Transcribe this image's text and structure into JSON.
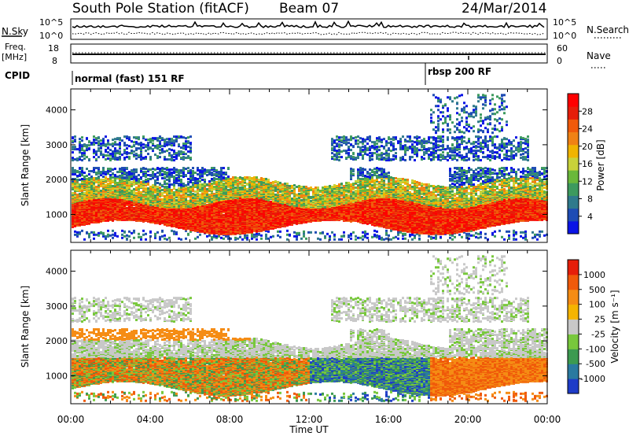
{
  "header": {
    "station": "South Pole Station (fitACF)",
    "beam": "Beam 07",
    "date": "24/Mar/2014"
  },
  "top_panels": {
    "nsky_label": "N.Sky",
    "nsky_ticks": [
      "10^5",
      "10^0"
    ],
    "nsearch_label": "N.Search",
    "nsearch_ticks": [
      "10^5",
      "10^0"
    ],
    "freq_label_1": "Freq.",
    "freq_label_2": "[MHz]",
    "freq_ticks": [
      "18",
      "8"
    ],
    "nave_label": "Nave",
    "nave_ticks": [
      "60",
      "0"
    ],
    "cpid_label": "CPID",
    "cpid_segments": [
      {
        "label": "normal (fast) 151 RF",
        "start_hour": 0
      },
      {
        "label": "rbsp 200 RF",
        "start_hour": 18
      }
    ]
  },
  "chart_data": [
    {
      "type": "heatmap",
      "name": "power",
      "ylabel": "Slant Range [km]",
      "xlabel": "",
      "xlim": [
        0,
        24
      ],
      "ylim": [
        200,
        4600
      ],
      "yticks": [
        "1000",
        "2000",
        "3000",
        "4000"
      ],
      "colorbar": {
        "label": "Power [dB]",
        "ticks": [
          "4",
          "8",
          "12",
          "16",
          "20",
          "24",
          "28"
        ],
        "colors": [
          "#0a14e6",
          "#1e4cb4",
          "#2f7a8c",
          "#3d9a5e",
          "#6ab83a",
          "#c8d23a",
          "#f0b400",
          "#f08214",
          "#f05a0a",
          "#e61e0a",
          "#ff0000"
        ]
      }
    },
    {
      "type": "heatmap",
      "name": "velocity",
      "ylabel": "Slant Range [km]",
      "xlabel": "Time UT",
      "xlim": [
        0,
        24
      ],
      "ylim": [
        200,
        4600
      ],
      "xticks": [
        "00:00",
        "04:00",
        "08:00",
        "12:00",
        "16:00",
        "20:00",
        "00:00"
      ],
      "yticks": [
        "1000",
        "2000",
        "3000",
        "4000"
      ],
      "colorbar": {
        "label": "Velocity [m s⁻¹]",
        "ticks": [
          "1000",
          "500",
          "100",
          "25",
          "-25",
          "-100",
          "-500",
          "-1000"
        ],
        "colors": [
          "#1e3cc8",
          "#2a7aa0",
          "#3c9a50",
          "#78c83c",
          "#c8c8c8",
          "#f5b400",
          "#f58c14",
          "#f05a0a",
          "#e61e0a"
        ]
      }
    }
  ]
}
